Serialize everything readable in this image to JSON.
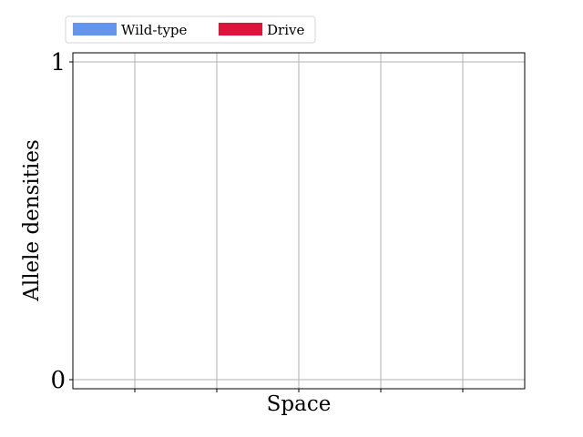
{
  "chart_data": {
    "type": "area",
    "title": "",
    "xlabel": "Space",
    "ylabel": "Allele densities",
    "ylim": [
      0,
      1
    ],
    "yticks": [
      "0",
      "1"
    ],
    "xticks_count": 5,
    "grid": true,
    "legend_position": "top-left-outside",
    "series": [
      {
        "name": "Wild-type",
        "color": "#6495ED",
        "values": []
      },
      {
        "name": "Drive",
        "color": "#DC143C",
        "values": []
      }
    ]
  }
}
